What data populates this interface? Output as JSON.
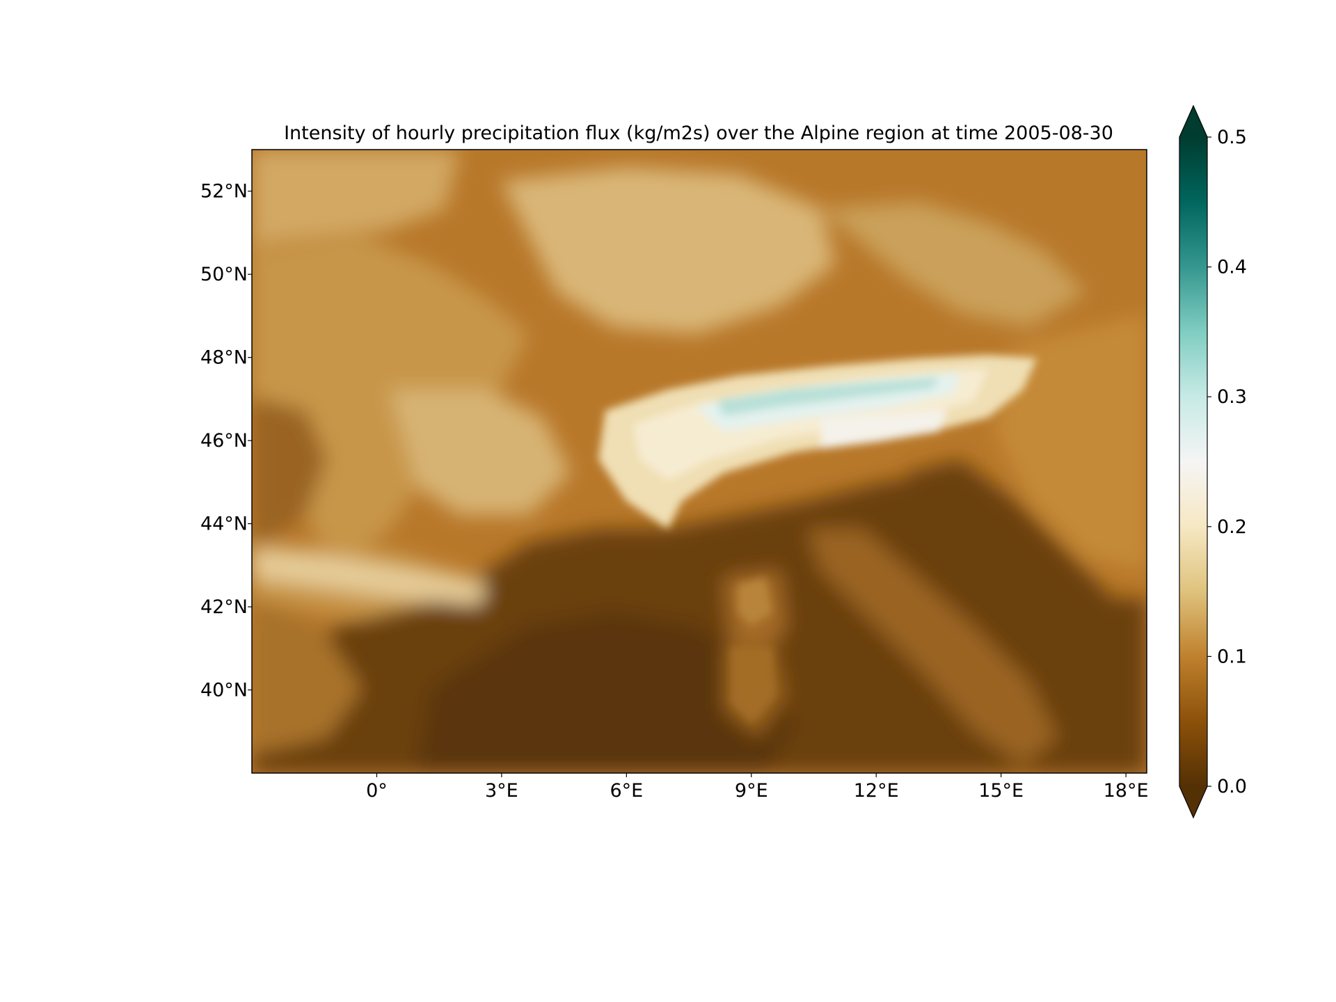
{
  "title": "Intensity of hourly precipitation flux (kg/m2s) over the Alpine region at time 2005-08-30",
  "map": {
    "lon_range": [
      -3.0,
      18.5
    ],
    "lat_range": [
      38.0,
      53.0
    ],
    "x_ticks": [
      {
        "value": 0,
        "label": "0°"
      },
      {
        "value": 3,
        "label": "3°E"
      },
      {
        "value": 6,
        "label": "6°E"
      },
      {
        "value": 9,
        "label": "9°E"
      },
      {
        "value": 12,
        "label": "12°E"
      },
      {
        "value": 15,
        "label": "15°E"
      },
      {
        "value": 18,
        "label": "18°E"
      }
    ],
    "y_ticks": [
      {
        "value": 52,
        "label": "52°N"
      },
      {
        "value": 50,
        "label": "50°N"
      },
      {
        "value": 48,
        "label": "48°N"
      },
      {
        "value": 46,
        "label": "46°N"
      },
      {
        "value": 44,
        "label": "44°N"
      },
      {
        "value": 42,
        "label": "42°N"
      },
      {
        "value": 40,
        "label": "40°N"
      }
    ]
  },
  "colorbar": {
    "colormap": "BrBG",
    "extend": "both",
    "range": [
      0.0,
      0.5
    ],
    "ticks": [
      {
        "value": 0.0,
        "label": "0.0"
      },
      {
        "value": 0.1,
        "label": "0.1"
      },
      {
        "value": 0.2,
        "label": "0.2"
      },
      {
        "value": 0.3,
        "label": "0.3"
      },
      {
        "value": 0.4,
        "label": "0.4"
      },
      {
        "value": 0.5,
        "label": "0.5"
      }
    ],
    "stops": [
      {
        "v": 0.0,
        "color": "#543005"
      },
      {
        "v": 0.05,
        "color": "#8c510a"
      },
      {
        "v": 0.1,
        "color": "#bf812d"
      },
      {
        "v": 0.15,
        "color": "#dfc27d"
      },
      {
        "v": 0.2,
        "color": "#f6e8c3"
      },
      {
        "v": 0.25,
        "color": "#f5f5f5"
      },
      {
        "v": 0.3,
        "color": "#c7eae5"
      },
      {
        "v": 0.35,
        "color": "#80cdc1"
      },
      {
        "v": 0.4,
        "color": "#35978f"
      },
      {
        "v": 0.45,
        "color": "#01665e"
      },
      {
        "v": 0.5,
        "color": "#003c30"
      }
    ]
  }
}
